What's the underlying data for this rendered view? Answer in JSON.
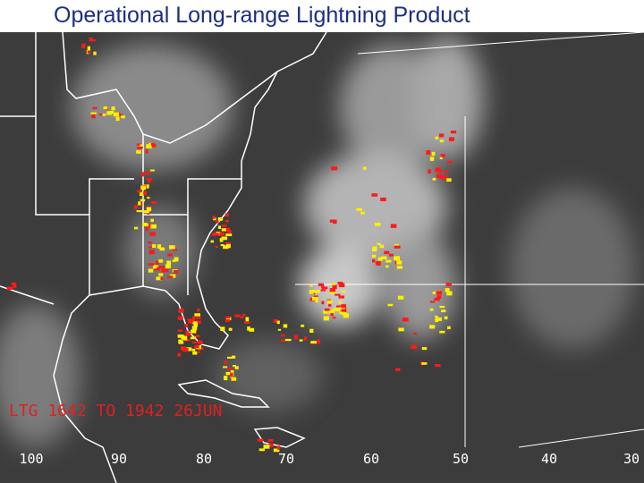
{
  "header": {
    "title": "Operational Long-range Lightning Product"
  },
  "map": {
    "overlay_label": "LTG 1642 TO 1942 26JUN",
    "longitude_labels": [
      "100",
      "90",
      "80",
      "70",
      "60",
      "50",
      "40",
      "30"
    ]
  }
}
